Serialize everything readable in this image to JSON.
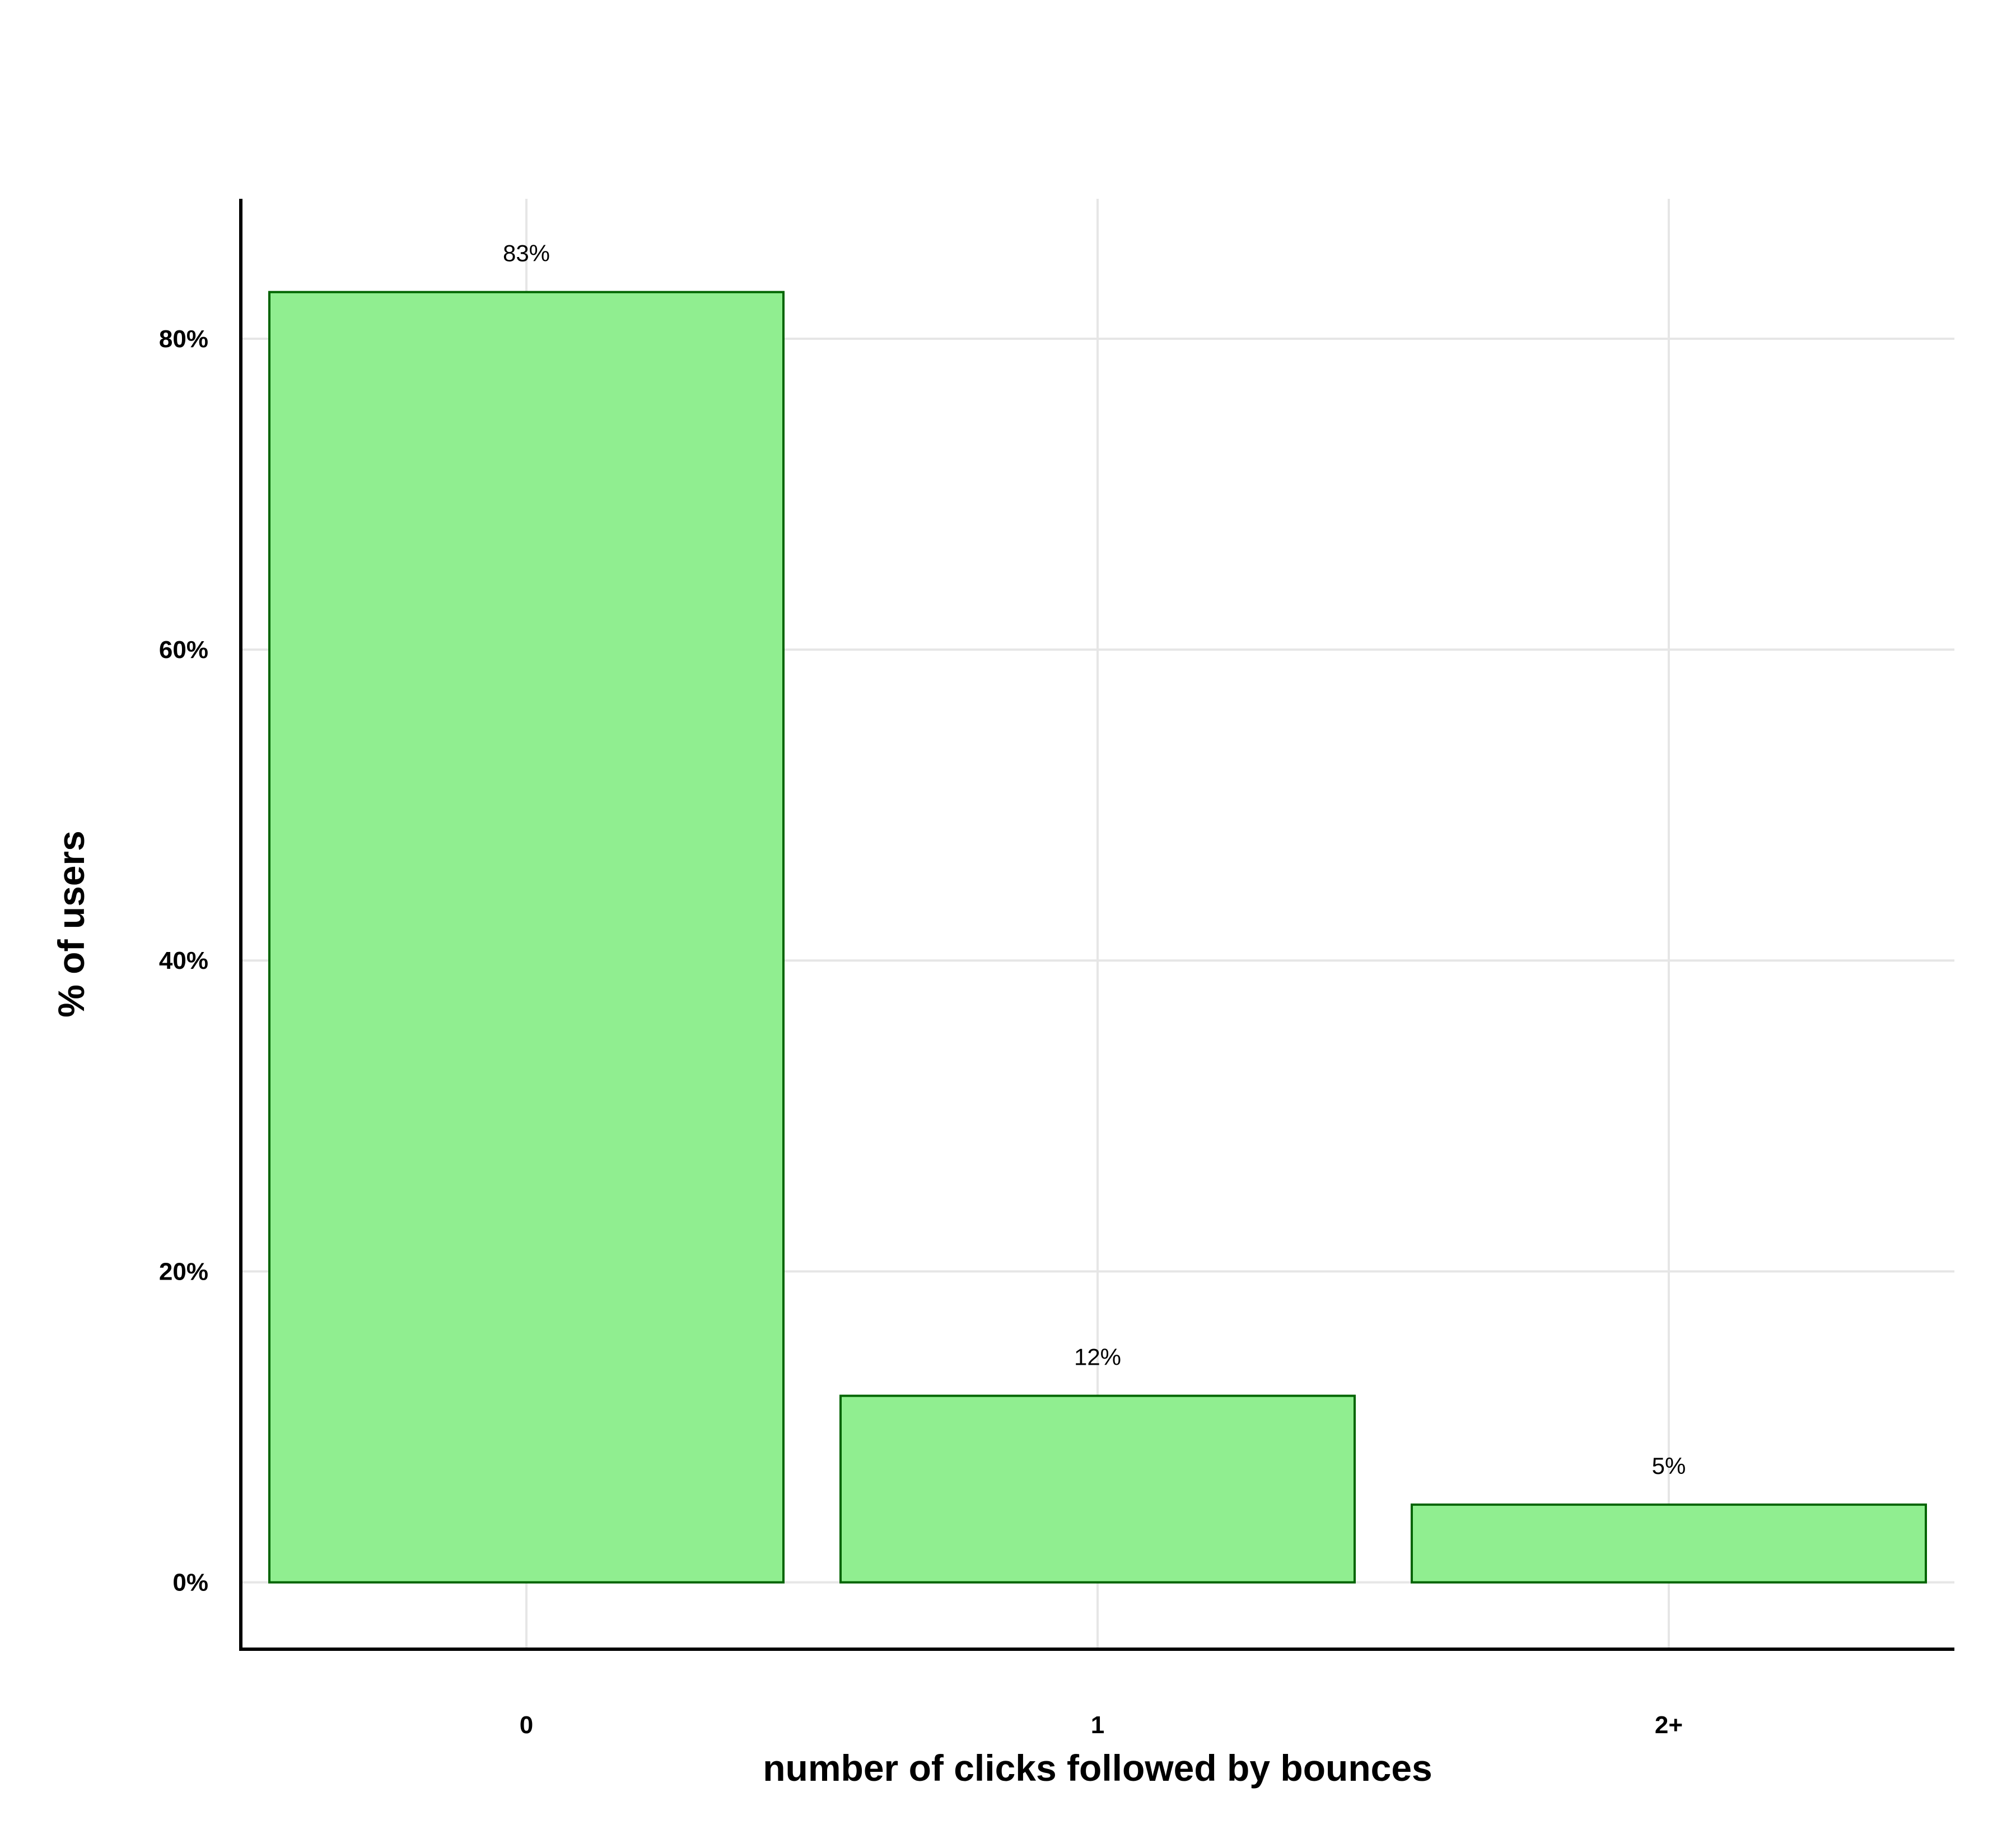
{
  "chart_data": {
    "type": "bar",
    "categories": [
      "0",
      "1",
      "2+"
    ],
    "values": [
      83,
      12,
      5
    ],
    "data_labels": [
      "83%",
      "12%",
      "5%"
    ],
    "title": "",
    "xlabel": "number of clicks followed by bounces",
    "ylabel": "% of users",
    "ylim": [
      -4.3,
      89
    ],
    "yticks": [
      0,
      20,
      40,
      60,
      80
    ],
    "ytick_labels": [
      "0%",
      "20%",
      "40%",
      "60%",
      "80%"
    ],
    "grid": true,
    "legend": "none",
    "colors": {
      "bar_fill": "#90ee90",
      "bar_edge": "#006400",
      "grid": "#e6e6e6",
      "axis": "#000000"
    }
  }
}
